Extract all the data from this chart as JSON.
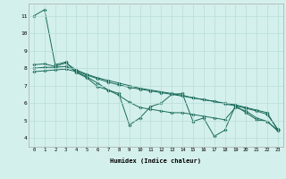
{
  "xlabel": "Humidex (Indice chaleur)",
  "ylabel": "",
  "bg_color": "#d4f0ec",
  "grid_color": "#b8ddd8",
  "line_color": "#1a6b5a",
  "marker_color": "#1a6b5a",
  "xlim": [
    -0.5,
    23.5
  ],
  "ylim": [
    3.5,
    11.7
  ],
  "yticks": [
    4,
    5,
    6,
    7,
    8,
    9,
    10,
    11
  ],
  "xticks": [
    0,
    1,
    2,
    3,
    4,
    5,
    6,
    7,
    8,
    9,
    10,
    11,
    12,
    13,
    14,
    15,
    16,
    17,
    18,
    19,
    20,
    21,
    22,
    23
  ],
  "series": [
    {
      "x": [
        0,
        1,
        2,
        3,
        4,
        5,
        6,
        7,
        8,
        9,
        10,
        11,
        12,
        13,
        14,
        15,
        16,
        17,
        18,
        19,
        20,
        21,
        22,
        23
      ],
      "y": [
        11.0,
        11.35,
        8.2,
        8.35,
        7.75,
        7.45,
        6.95,
        6.75,
        6.55,
        4.75,
        5.15,
        5.8,
        6.0,
        6.5,
        6.55,
        4.95,
        5.15,
        4.1,
        4.45,
        5.85,
        5.45,
        5.05,
        4.95,
        4.45
      ]
    },
    {
      "x": [
        0,
        1,
        2,
        3,
        4,
        5,
        6,
        7,
        8,
        9,
        10,
        11,
        12,
        13,
        14,
        15,
        16,
        17,
        18,
        19,
        20,
        21,
        22,
        23
      ],
      "y": [
        8.2,
        8.25,
        8.1,
        8.3,
        7.9,
        7.65,
        7.45,
        7.3,
        7.15,
        7.0,
        6.85,
        6.75,
        6.65,
        6.55,
        6.45,
        6.3,
        6.2,
        6.1,
        5.95,
        5.85,
        5.7,
        5.55,
        5.35,
        4.5
      ]
    },
    {
      "x": [
        0,
        1,
        2,
        3,
        4,
        5,
        6,
        7,
        8,
        9,
        10,
        11,
        12,
        13,
        14,
        15,
        16,
        17,
        18,
        19,
        20,
        21,
        22,
        23
      ],
      "y": [
        8.0,
        8.05,
        8.05,
        8.1,
        7.85,
        7.6,
        7.4,
        7.2,
        7.05,
        6.9,
        6.8,
        6.7,
        6.6,
        6.5,
        6.4,
        6.3,
        6.2,
        6.1,
        6.0,
        5.9,
        5.75,
        5.6,
        5.45,
        4.45
      ]
    },
    {
      "x": [
        0,
        1,
        2,
        3,
        4,
        5,
        6,
        7,
        8,
        9,
        10,
        11,
        12,
        13,
        14,
        15,
        16,
        17,
        18,
        19,
        20,
        21,
        22,
        23
      ],
      "y": [
        7.8,
        7.85,
        7.9,
        7.95,
        7.8,
        7.5,
        7.15,
        6.75,
        6.45,
        6.05,
        5.75,
        5.65,
        5.55,
        5.45,
        5.45,
        5.35,
        5.25,
        5.15,
        5.05,
        5.75,
        5.55,
        5.15,
        4.95,
        4.4
      ]
    }
  ]
}
